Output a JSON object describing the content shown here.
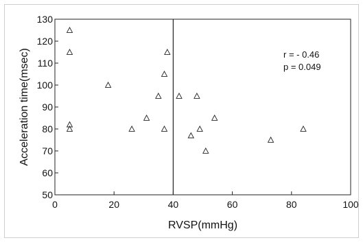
{
  "chart_data": {
    "type": "scatter",
    "title": "",
    "xlabel": "RVSP(mmHg)",
    "ylabel": "Acceleration time(msec)",
    "xlim": [
      0,
      100
    ],
    "ylim": [
      50,
      130
    ],
    "xticks": [
      0,
      20,
      40,
      60,
      80,
      100
    ],
    "yticks": [
      50,
      60,
      70,
      80,
      90,
      100,
      110,
      120,
      130
    ],
    "grid": false,
    "marker": "open-triangle",
    "reference_line": {
      "x": 40
    },
    "annotations": [
      "r = - 0.46",
      "p = 0.049"
    ],
    "series": [
      {
        "points": [
          [
            5,
            125
          ],
          [
            5,
            115
          ],
          [
            5,
            82
          ],
          [
            5,
            80
          ],
          [
            18,
            100
          ],
          [
            26,
            80
          ],
          [
            31,
            85
          ],
          [
            35,
            95
          ],
          [
            37,
            105
          ],
          [
            37,
            80
          ],
          [
            38,
            115
          ],
          [
            42,
            95
          ],
          [
            46,
            77
          ],
          [
            48,
            95
          ],
          [
            49,
            80
          ],
          [
            51,
            70
          ],
          [
            54,
            85
          ],
          [
            73,
            75
          ],
          [
            84,
            80
          ]
        ]
      }
    ]
  }
}
